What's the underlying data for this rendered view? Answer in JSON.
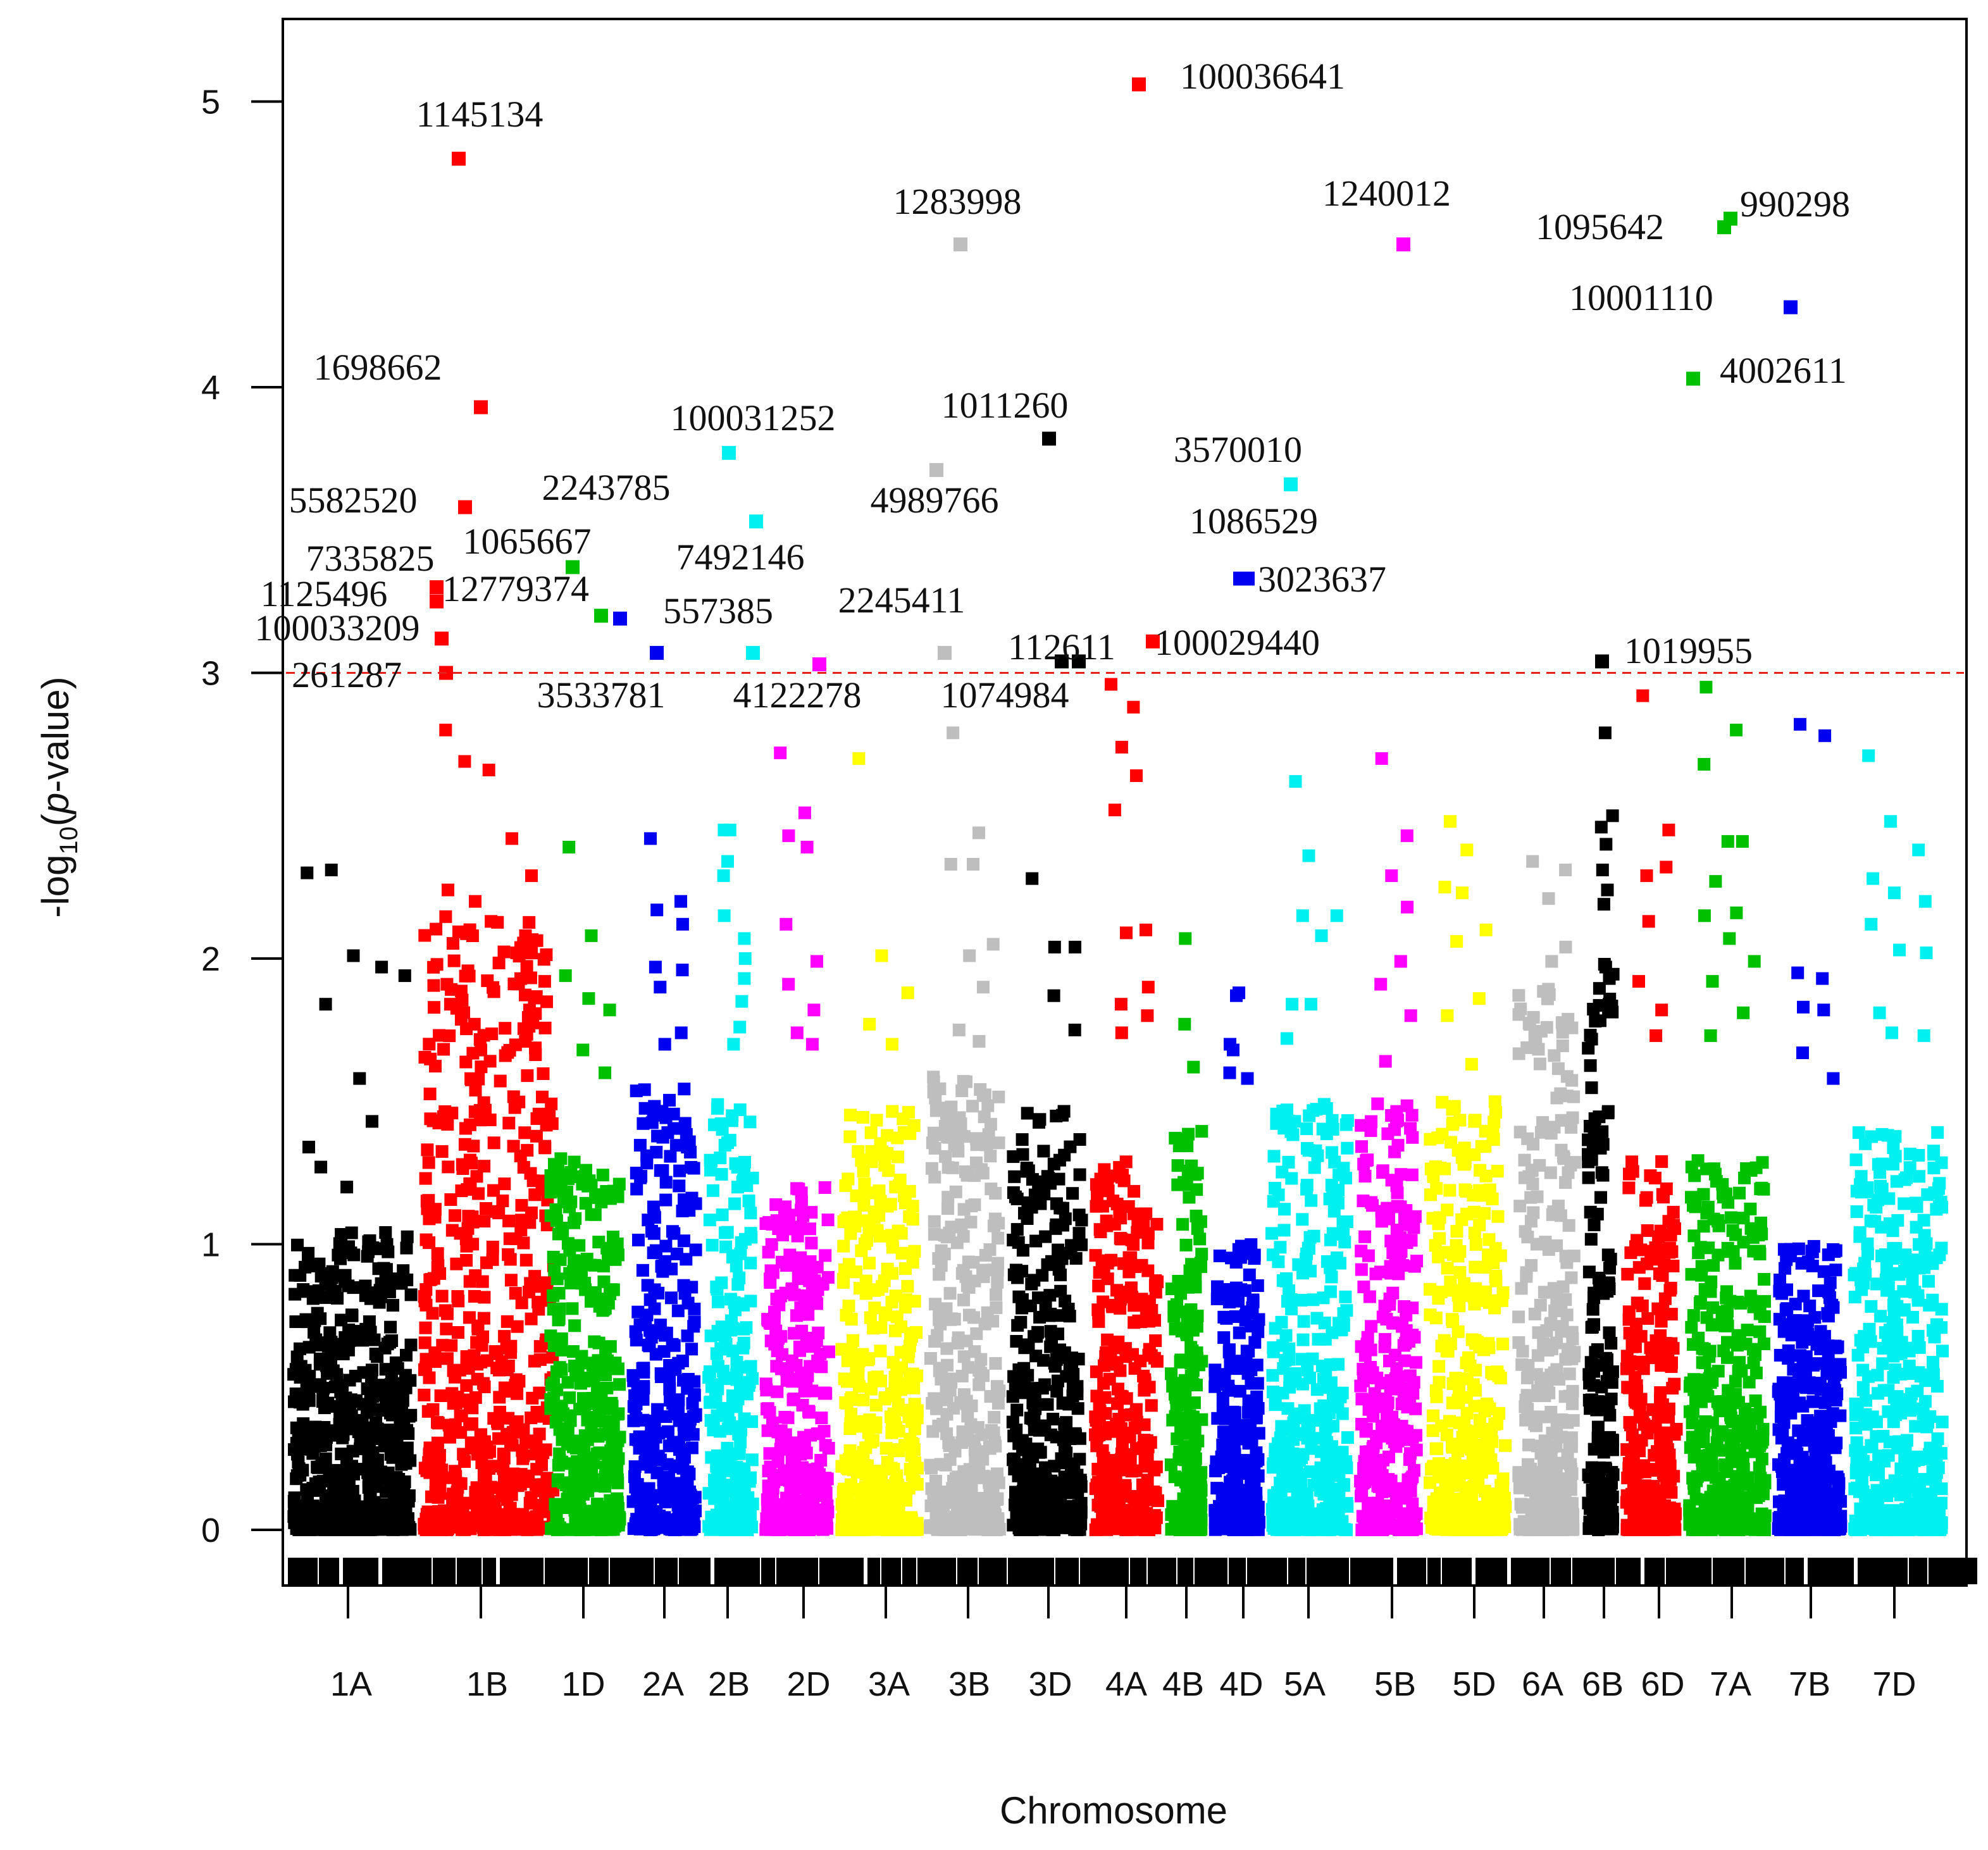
{
  "chart_data": {
    "type": "scatter",
    "subtype": "manhattan",
    "title": "",
    "xlabel": "Chromosome",
    "ylabel": "-log10(p-value)",
    "ylabel_parts": {
      "prefix": "-log",
      "sub": "10",
      "open": "(",
      "italic": "p",
      "rest": "-value)"
    },
    "ylim": [
      0,
      5.3
    ],
    "yticks": [
      0,
      1,
      2,
      3,
      4,
      5
    ],
    "threshold": {
      "value": 3,
      "color": "#e8201c",
      "style": "dashed"
    },
    "chromosomes": [
      {
        "name": "1A",
        "color": "#000000",
        "background_max": 1.05
      },
      {
        "name": "1B",
        "color": "#ff0000",
        "background_max": 2.15
      },
      {
        "name": "1D",
        "color": "#00c000",
        "background_max": 1.3
      },
      {
        "name": "2A",
        "color": "#0000f0",
        "background_max": 1.55
      },
      {
        "name": "2B",
        "color": "#00f0f0",
        "background_max": 1.5
      },
      {
        "name": "2D",
        "color": "#ff00ff",
        "background_max": 1.2
      },
      {
        "name": "3A",
        "color": "#ffff00",
        "background_max": 1.5
      },
      {
        "name": "3B",
        "color": "#bebebe",
        "background_max": 1.6
      },
      {
        "name": "3D",
        "color": "#000000",
        "background_max": 1.5
      },
      {
        "name": "4A",
        "color": "#ff0000",
        "background_max": 1.3
      },
      {
        "name": "4B",
        "color": "#00c000",
        "background_max": 1.4
      },
      {
        "name": "4D",
        "color": "#0000f0",
        "background_max": 1.0
      },
      {
        "name": "5A",
        "color": "#00f0f0",
        "background_max": 1.5
      },
      {
        "name": "5B",
        "color": "#ff00ff",
        "background_max": 1.5
      },
      {
        "name": "5D",
        "color": "#ffff00",
        "background_max": 1.5
      },
      {
        "name": "6A",
        "color": "#bebebe",
        "background_max": 1.9
      },
      {
        "name": "6B",
        "color": "#000000",
        "background_max": 1.95
      },
      {
        "name": "6D",
        "color": "#ff0000",
        "background_max": 1.3
      },
      {
        "name": "7A",
        "color": "#00c000",
        "background_max": 1.3
      },
      {
        "name": "7B",
        "color": "#0000f0",
        "background_max": 1.0
      },
      {
        "name": "7D",
        "color": "#00f0f0",
        "background_max": 1.4
      }
    ],
    "extra_points": [
      {
        "chr": "1A",
        "y": [
          2.3,
          2.31,
          2.01,
          1.97,
          1.94,
          1.84,
          1.58,
          1.43,
          1.34,
          1.27,
          1.2
        ]
      },
      {
        "chr": "1B",
        "y": [
          2.8,
          2.69,
          2.66,
          2.42,
          2.29,
          2.24,
          2.2,
          2.13,
          2.02,
          1.92,
          1.84,
          1.77,
          1.66,
          1.59
        ]
      },
      {
        "chr": "1D",
        "y": [
          2.39,
          2.08,
          1.94,
          1.86,
          1.82,
          1.68,
          1.6
        ]
      },
      {
        "chr": "2A",
        "y": [
          2.42,
          2.2,
          2.17,
          2.12,
          1.97,
          1.96,
          1.9,
          1.74,
          1.7
        ]
      },
      {
        "chr": "2B",
        "y": [
          2.45,
          2.45,
          2.34,
          2.29,
          2.15,
          2.07,
          2.0,
          1.93,
          1.85,
          1.76,
          1.7
        ]
      },
      {
        "chr": "2D",
        "y": [
          2.72,
          2.51,
          2.43,
          2.39,
          2.12,
          1.99,
          1.91,
          1.82,
          1.74,
          1.7
        ]
      },
      {
        "chr": "3A",
        "y": [
          2.7,
          2.01,
          1.88,
          1.77,
          1.7
        ]
      },
      {
        "chr": "3B",
        "y": [
          2.79,
          2.44,
          2.33,
          2.33,
          2.05,
          2.01,
          1.9,
          1.75,
          1.71
        ]
      },
      {
        "chr": "3D",
        "y": [
          2.28,
          2.04,
          2.04,
          1.87,
          1.75
        ]
      },
      {
        "chr": "4A",
        "y": [
          2.96,
          2.88,
          2.74,
          2.64,
          2.52,
          2.1,
          2.09,
          1.9,
          1.84,
          1.8,
          1.74
        ]
      },
      {
        "chr": "4B",
        "y": [
          2.07,
          1.77,
          1.62
        ]
      },
      {
        "chr": "4D",
        "y": [
          1.88,
          1.87,
          1.7,
          1.68,
          1.6,
          1.58
        ]
      },
      {
        "chr": "5A",
        "y": [
          2.62,
          2.36,
          2.15,
          2.15,
          2.08,
          1.84,
          1.84,
          1.72
        ]
      },
      {
        "chr": "5B",
        "y": [
          2.7,
          2.43,
          2.29,
          2.18,
          1.99,
          1.91,
          1.8,
          1.64
        ]
      },
      {
        "chr": "5D",
        "y": [
          2.48,
          2.38,
          2.25,
          2.23,
          2.1,
          2.06,
          1.86,
          1.8,
          1.63
        ]
      },
      {
        "chr": "6A",
        "y": [
          2.34,
          2.31,
          2.21,
          2.04,
          1.99,
          1.73
        ]
      },
      {
        "chr": "6B",
        "y": [
          2.79,
          2.5,
          2.46,
          2.4,
          2.31,
          2.24,
          2.19,
          1.98,
          1.97,
          1.93,
          1.84
        ]
      },
      {
        "chr": "6D",
        "y": [
          2.92,
          2.45,
          2.32,
          2.29,
          2.13,
          1.92,
          1.82,
          1.73
        ]
      },
      {
        "chr": "7A",
        "y": [
          2.95,
          2.8,
          2.68,
          2.41,
          2.41,
          2.27,
          2.16,
          2.15,
          2.07,
          1.99,
          1.92,
          1.81,
          1.73
        ]
      },
      {
        "chr": "7B",
        "y": [
          2.82,
          2.78,
          1.95,
          1.93,
          1.83,
          1.82,
          1.67,
          1.58
        ]
      },
      {
        "chr": "7D",
        "y": [
          2.71,
          2.48,
          2.38,
          2.28,
          2.23,
          2.2,
          2.12,
          2.03,
          2.02,
          1.81,
          1.74,
          1.73
        ]
      }
    ],
    "labeled_snps": [
      {
        "id": "1145134",
        "chr": "1B",
        "y": 4.8
      },
      {
        "id": "1698662",
        "chr": "1B",
        "y": 3.93
      },
      {
        "id": "5582520",
        "chr": "1B",
        "y": 3.58
      },
      {
        "id": "7335825",
        "chr": "1B",
        "y": 3.3
      },
      {
        "id": "1125496",
        "chr": "1B",
        "y": 3.25
      },
      {
        "id": "100033209",
        "chr": "1B",
        "y": 3.12
      },
      {
        "id": "261287",
        "chr": "1B",
        "y": 3.0
      },
      {
        "id": "1065667",
        "chr": "1D",
        "y": 3.37
      },
      {
        "id": "12779374",
        "chr": "1D",
        "y": 3.2
      },
      {
        "id": "2243785",
        "chr": "2A",
        "y": 3.19
      },
      {
        "id": "3533781",
        "chr": "2A",
        "y": 3.07
      },
      {
        "id": "100031252",
        "chr": "2B",
        "y": 3.77
      },
      {
        "id": "7492146",
        "chr": "2B",
        "y": 3.53
      },
      {
        "id": "557385",
        "chr": "2B",
        "y": 3.07
      },
      {
        "id": "4122278",
        "chr": "2D",
        "y": 3.03
      },
      {
        "id": "1283998",
        "chr": "3B",
        "y": 4.5
      },
      {
        "id": "4989766",
        "chr": "3B",
        "y": 3.71
      },
      {
        "id": "2245411",
        "chr": "3B",
        "y": 3.07
      },
      {
        "id": "1074984",
        "chr": "3D",
        "y": 3.04
      },
      {
        "id": "1011260",
        "chr": "3D",
        "y": 3.82
      },
      {
        "id": "112611",
        "chr": "3D",
        "y": 3.04
      },
      {
        "id": "100036641",
        "chr": "4A",
        "y": 5.06
      },
      {
        "id": "100029440",
        "chr": "4A",
        "y": 3.11
      },
      {
        "id": "3570010",
        "chr": "5A",
        "y": 3.66
      },
      {
        "id": "1086529",
        "chr": "4D",
        "y": 3.33
      },
      {
        "id": "3023637",
        "chr": "4D",
        "y": 3.33
      },
      {
        "id": "1240012",
        "chr": "5B",
        "y": 4.5
      },
      {
        "id": "1019955",
        "chr": "6B",
        "y": 3.04
      },
      {
        "id": "1095642",
        "chr": "7A",
        "y": 4.56
      },
      {
        "id": "990298",
        "chr": "7A",
        "y": 4.59
      },
      {
        "id": "4002611",
        "chr": "7A",
        "y": 4.03
      },
      {
        "id": "10001110",
        "chr": "7B",
        "y": 4.28
      }
    ]
  }
}
